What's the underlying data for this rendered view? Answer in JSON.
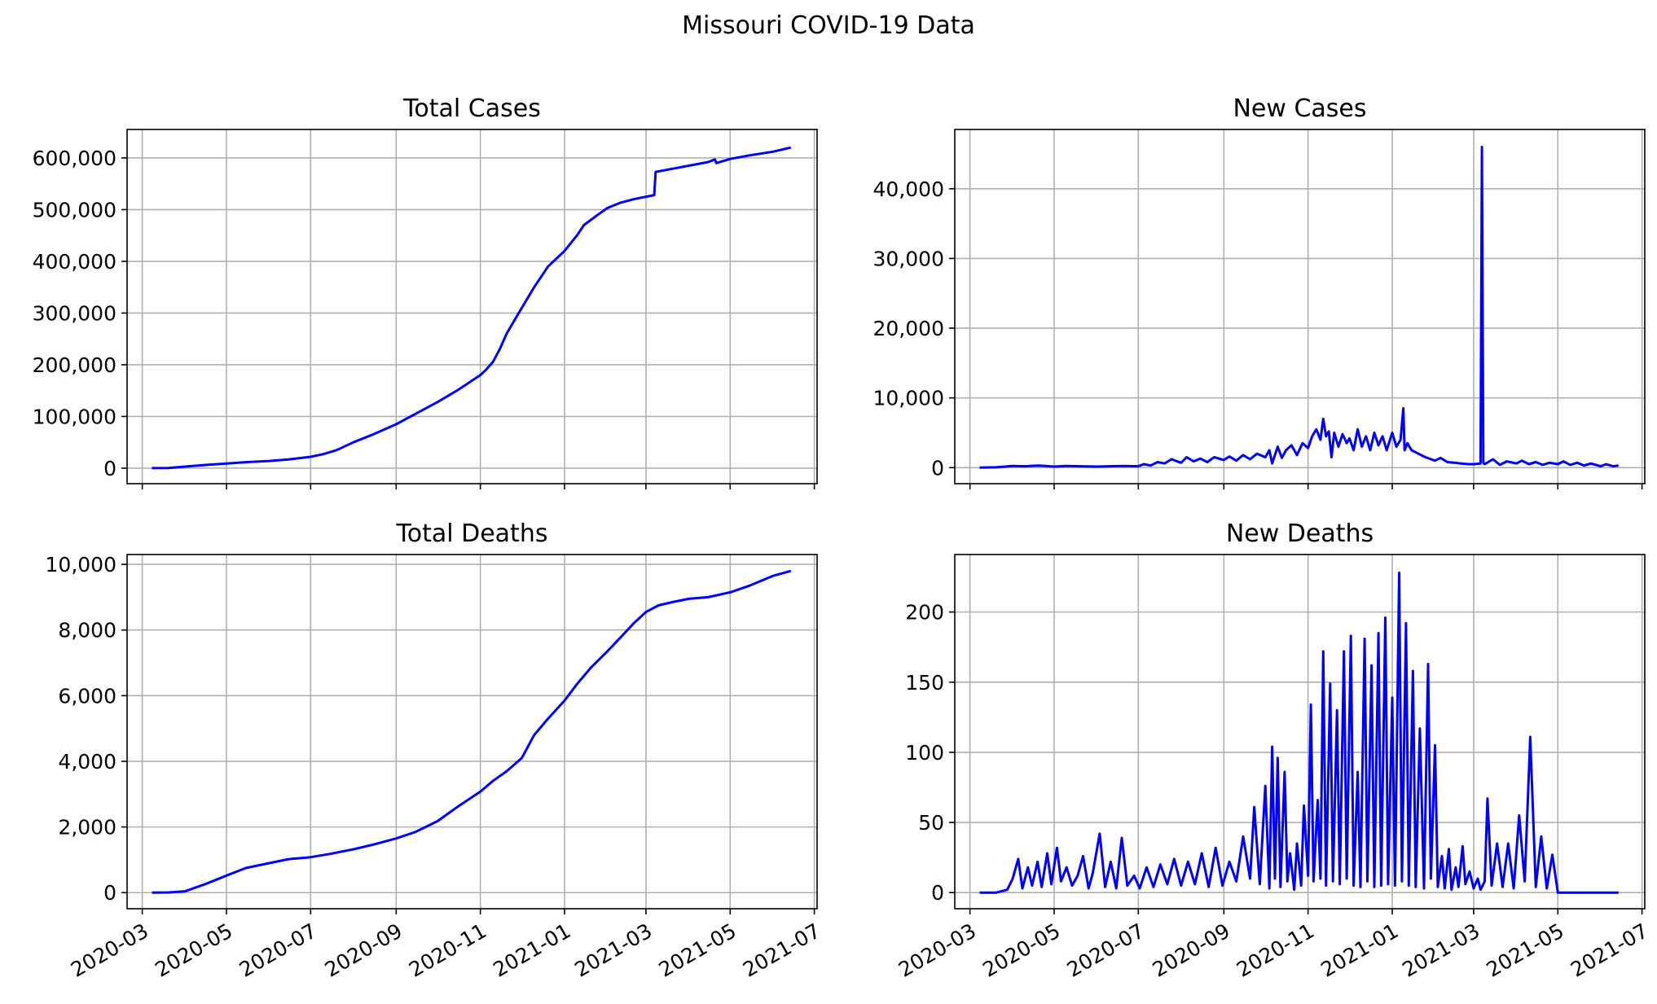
{
  "figure_title": "Missouri COVID-19 Data",
  "colors": {
    "line": "#0000ff",
    "grid": "#b0b0b0",
    "axes": "#000000"
  },
  "chart_data": [
    {
      "id": "total-cases",
      "type": "line",
      "title": "Total Cases",
      "xlabel": "",
      "ylabel": "",
      "grid": true,
      "x_type": "date",
      "xlim": [
        "2020-02-19",
        "2021-07-03"
      ],
      "ylim": [
        -30000,
        655000
      ],
      "yticks": [
        0,
        100000,
        200000,
        300000,
        400000,
        500000,
        600000
      ],
      "ytick_labels": [
        "0",
        "100,000",
        "200,000",
        "300,000",
        "400,000",
        "500,000",
        "600,000"
      ],
      "xticks": [
        "2020-03-01",
        "2020-05-01",
        "2020-07-01",
        "2020-09-01",
        "2020-11-01",
        "2021-01-01",
        "2021-03-01",
        "2021-05-01",
        "2021-07-01"
      ],
      "xtick_labels": [],
      "series": [
        {
          "x": [
            "2020-03-08",
            "2020-03-20",
            "2020-04-01",
            "2020-04-15",
            "2020-05-01",
            "2020-05-15",
            "2020-06-01",
            "2020-06-15",
            "2020-07-01",
            "2020-07-10",
            "2020-07-20",
            "2020-08-01",
            "2020-08-15",
            "2020-09-01",
            "2020-09-15",
            "2020-10-01",
            "2020-10-15",
            "2020-11-01",
            "2020-11-05",
            "2020-11-10",
            "2020-11-15",
            "2020-11-20",
            "2020-12-01",
            "2020-12-10",
            "2020-12-20",
            "2021-01-01",
            "2021-01-10",
            "2021-01-15",
            "2021-01-25",
            "2021-02-01",
            "2021-02-10",
            "2021-02-20",
            "2021-03-01",
            "2021-03-07",
            "2021-03-08",
            "2021-03-20",
            "2021-04-01",
            "2021-04-15",
            "2021-04-20",
            "2021-04-21",
            "2021-05-01",
            "2021-05-15",
            "2021-06-01",
            "2021-06-14"
          ],
          "y": [
            0,
            300,
            3000,
            6000,
            9000,
            11500,
            14000,
            17000,
            22000,
            27000,
            35000,
            50000,
            65000,
            85000,
            105000,
            128000,
            150000,
            180000,
            190000,
            205000,
            230000,
            260000,
            310000,
            350000,
            390000,
            420000,
            450000,
            470000,
            490000,
            503000,
            513000,
            520000,
            525000,
            528000,
            573000,
            579000,
            585000,
            592000,
            597000,
            590000,
            598000,
            605000,
            612000,
            620000
          ]
        }
      ]
    },
    {
      "id": "new-cases",
      "type": "line",
      "title": "New Cases",
      "xlabel": "",
      "ylabel": "",
      "grid": true,
      "x_type": "date",
      "xlim": [
        "2020-02-19",
        "2021-07-03"
      ],
      "ylim": [
        -2300,
        48500
      ],
      "yticks": [
        0,
        10000,
        20000,
        30000,
        40000
      ],
      "ytick_labels": [
        "0",
        "10,000",
        "20,000",
        "30,000",
        "40,000"
      ],
      "xticks": [
        "2020-03-01",
        "2020-05-01",
        "2020-07-01",
        "2020-09-01",
        "2020-11-01",
        "2021-01-01",
        "2021-03-01",
        "2021-05-01",
        "2021-07-01"
      ],
      "xtick_labels": [],
      "series": [
        {
          "x": [
            "2020-03-08",
            "2020-03-20",
            "2020-04-01",
            "2020-04-10",
            "2020-04-20",
            "2020-05-01",
            "2020-05-10",
            "2020-05-20",
            "2020-06-01",
            "2020-06-10",
            "2020-06-20",
            "2020-07-01",
            "2020-07-05",
            "2020-07-10",
            "2020-07-15",
            "2020-07-20",
            "2020-07-25",
            "2020-08-01",
            "2020-08-05",
            "2020-08-10",
            "2020-08-15",
            "2020-08-20",
            "2020-08-25",
            "2020-09-01",
            "2020-09-05",
            "2020-09-10",
            "2020-09-15",
            "2020-09-20",
            "2020-09-25",
            "2020-10-01",
            "2020-10-04",
            "2020-10-06",
            "2020-10-10",
            "2020-10-13",
            "2020-10-16",
            "2020-10-20",
            "2020-10-24",
            "2020-10-28",
            "2020-11-01",
            "2020-11-04",
            "2020-11-07",
            "2020-11-10",
            "2020-11-12",
            "2020-11-14",
            "2020-11-16",
            "2020-11-18",
            "2020-11-20",
            "2020-11-23",
            "2020-11-26",
            "2020-11-29",
            "2020-12-01",
            "2020-12-04",
            "2020-12-07",
            "2020-12-10",
            "2020-12-13",
            "2020-12-16",
            "2020-12-19",
            "2020-12-22",
            "2020-12-25",
            "2020-12-28",
            "2021-01-01",
            "2021-01-04",
            "2021-01-07",
            "2021-01-09",
            "2021-01-10",
            "2021-01-12",
            "2021-01-15",
            "2021-01-20",
            "2021-01-25",
            "2021-02-01",
            "2021-02-05",
            "2021-02-10",
            "2021-02-15",
            "2021-02-20",
            "2021-02-25",
            "2021-03-01",
            "2021-03-06",
            "2021-03-07",
            "2021-03-08",
            "2021-03-09",
            "2021-03-15",
            "2021-03-20",
            "2021-03-25",
            "2021-04-01",
            "2021-04-05",
            "2021-04-10",
            "2021-04-15",
            "2021-04-20",
            "2021-04-25",
            "2021-05-01",
            "2021-05-05",
            "2021-05-10",
            "2021-05-15",
            "2021-05-20",
            "2021-05-25",
            "2021-06-01",
            "2021-06-05",
            "2021-06-10",
            "2021-06-14"
          ],
          "y": [
            0,
            50,
            250,
            200,
            300,
            150,
            250,
            200,
            150,
            200,
            250,
            200,
            500,
            300,
            800,
            600,
            1200,
            700,
            1500,
            900,
            1300,
            800,
            1500,
            1100,
            1600,
            1000,
            1800,
            1200,
            2000,
            1500,
            2500,
            600,
            3000,
            1400,
            2500,
            3200,
            1800,
            3500,
            2800,
            4500,
            5500,
            4000,
            7000,
            4500,
            5200,
            1500,
            5000,
            3000,
            4800,
            3500,
            4200,
            2500,
            5500,
            3000,
            4500,
            2500,
            5000,
            3200,
            4500,
            2500,
            5000,
            3000,
            4000,
            8500,
            2500,
            3500,
            2500,
            2000,
            1500,
            1000,
            1400,
            800,
            700,
            600,
            500,
            500,
            600,
            46000,
            700,
            500,
            1200,
            400,
            900,
            600,
            1000,
            500,
            800,
            400,
            700,
            500,
            900,
            400,
            700,
            300,
            600,
            200,
            500,
            200,
            300
          ]
        }
      ]
    },
    {
      "id": "total-deaths",
      "type": "line",
      "title": "Total Deaths",
      "xlabel": "",
      "ylabel": "",
      "grid": true,
      "x_type": "date",
      "xlim": [
        "2020-02-19",
        "2021-07-03"
      ],
      "ylim": [
        -490,
        10300
      ],
      "yticks": [
        0,
        2000,
        4000,
        6000,
        8000,
        10000
      ],
      "ytick_labels": [
        "0",
        "2,000",
        "4,000",
        "6,000",
        "8,000",
        "10,000"
      ],
      "xticks": [
        "2020-03-01",
        "2020-05-01",
        "2020-07-01",
        "2020-09-01",
        "2020-11-01",
        "2021-01-01",
        "2021-03-01",
        "2021-05-01",
        "2021-07-01"
      ],
      "xtick_labels": [
        "2020-03",
        "2020-05",
        "2020-07",
        "2020-09",
        "2020-11",
        "2021-01",
        "2021-03",
        "2021-05",
        "2021-07"
      ],
      "series": [
        {
          "x": [
            "2020-03-08",
            "2020-03-20",
            "2020-04-01",
            "2020-04-15",
            "2020-05-01",
            "2020-05-15",
            "2020-06-01",
            "2020-06-15",
            "2020-07-01",
            "2020-07-15",
            "2020-08-01",
            "2020-08-15",
            "2020-09-01",
            "2020-09-15",
            "2020-10-01",
            "2020-10-15",
            "2020-11-01",
            "2020-11-10",
            "2020-11-20",
            "2020-12-01",
            "2020-12-10",
            "2020-12-20",
            "2021-01-01",
            "2021-01-10",
            "2021-01-20",
            "2021-02-01",
            "2021-02-10",
            "2021-02-20",
            "2021-03-01",
            "2021-03-10",
            "2021-03-20",
            "2021-04-01",
            "2021-04-15",
            "2021-05-01",
            "2021-05-15",
            "2021-06-01",
            "2021-06-14"
          ],
          "y": [
            0,
            5,
            40,
            250,
            520,
            750,
            900,
            1020,
            1080,
            1180,
            1320,
            1460,
            1650,
            1850,
            2180,
            2600,
            3080,
            3400,
            3700,
            4100,
            4800,
            5300,
            5850,
            6350,
            6850,
            7350,
            7750,
            8200,
            8550,
            8750,
            8850,
            8950,
            9000,
            9150,
            9350,
            9650,
            9800
          ]
        }
      ]
    },
    {
      "id": "new-deaths",
      "type": "line",
      "title": "New Deaths",
      "xlabel": "",
      "ylabel": "",
      "grid": true,
      "x_type": "date",
      "xlim": [
        "2020-02-19",
        "2021-07-03"
      ],
      "ylim": [
        -11.5,
        241
      ],
      "yticks": [
        0,
        50,
        100,
        150,
        200
      ],
      "ytick_labels": [
        "0",
        "50",
        "100",
        "150",
        "200"
      ],
      "xticks": [
        "2020-03-01",
        "2020-05-01",
        "2020-07-01",
        "2020-09-01",
        "2020-11-01",
        "2021-01-01",
        "2021-03-01",
        "2021-05-01",
        "2021-07-01"
      ],
      "xtick_labels": [
        "2020-03",
        "2020-05",
        "2020-07",
        "2020-09",
        "2020-11",
        "2021-01",
        "2021-03",
        "2021-05",
        "2021-07"
      ],
      "series": [
        {
          "x": [
            "2020-03-08",
            "2020-03-20",
            "2020-03-28",
            "2020-04-01",
            "2020-04-05",
            "2020-04-08",
            "2020-04-12",
            "2020-04-15",
            "2020-04-19",
            "2020-04-22",
            "2020-04-26",
            "2020-04-29",
            "2020-05-03",
            "2020-05-06",
            "2020-05-10",
            "2020-05-14",
            "2020-05-18",
            "2020-05-22",
            "2020-05-26",
            "2020-05-29",
            "2020-06-03",
            "2020-06-07",
            "2020-06-11",
            "2020-06-15",
            "2020-06-19",
            "2020-06-23",
            "2020-06-28",
            "2020-07-02",
            "2020-07-07",
            "2020-07-12",
            "2020-07-17",
            "2020-07-22",
            "2020-07-27",
            "2020-08-01",
            "2020-08-06",
            "2020-08-11",
            "2020-08-16",
            "2020-08-21",
            "2020-08-26",
            "2020-08-31",
            "2020-09-05",
            "2020-09-10",
            "2020-09-15",
            "2020-09-20",
            "2020-09-23",
            "2020-09-27",
            "2020-10-01",
            "2020-10-04",
            "2020-10-06",
            "2020-10-08",
            "2020-10-10",
            "2020-10-12",
            "2020-10-15",
            "2020-10-17",
            "2020-10-19",
            "2020-10-22",
            "2020-10-24",
            "2020-10-27",
            "2020-10-29",
            "2020-11-01",
            "2020-11-03",
            "2020-11-05",
            "2020-11-08",
            "2020-11-10",
            "2020-11-12",
            "2020-11-14",
            "2020-11-17",
            "2020-11-19",
            "2020-11-22",
            "2020-11-24",
            "2020-11-27",
            "2020-11-29",
            "2020-12-02",
            "2020-12-04",
            "2020-12-07",
            "2020-12-09",
            "2020-12-12",
            "2020-12-14",
            "2020-12-17",
            "2020-12-19",
            "2020-12-22",
            "2020-12-24",
            "2020-12-27",
            "2020-12-29",
            "2021-01-01",
            "2021-01-03",
            "2021-01-06",
            "2021-01-08",
            "2021-01-11",
            "2021-01-13",
            "2021-01-16",
            "2021-01-18",
            "2021-01-21",
            "2021-01-24",
            "2021-01-27",
            "2021-01-29",
            "2021-02-01",
            "2021-02-03",
            "2021-02-06",
            "2021-02-08",
            "2021-02-11",
            "2021-02-13",
            "2021-02-16",
            "2021-02-18",
            "2021-02-21",
            "2021-02-23",
            "2021-02-26",
            "2021-03-01",
            "2021-03-04",
            "2021-03-06",
            "2021-03-09",
            "2021-03-11",
            "2021-03-14",
            "2021-03-18",
            "2021-03-22",
            "2021-03-26",
            "2021-03-30",
            "2021-04-03",
            "2021-04-07",
            "2021-04-11",
            "2021-04-15",
            "2021-04-19",
            "2021-04-23",
            "2021-04-27",
            "2021-05-01",
            "2021-05-05",
            "2021-05-09",
            "2021-05-13",
            "2021-05-17",
            "2021-05-20",
            "2021-05-24",
            "2021-05-28",
            "2021-06-01",
            "2021-06-05",
            "2021-06-09",
            "2021-06-12",
            "2021-06-14"
          ],
          "y": [
            0,
            0,
            2,
            10,
            24,
            3,
            18,
            5,
            22,
            4,
            28,
            6,
            32,
            8,
            18,
            5,
            12,
            26,
            3,
            14,
            42,
            4,
            22,
            3,
            39,
            5,
            12,
            3,
            18,
            4,
            20,
            6,
            24,
            5,
            22,
            6,
            28,
            4,
            32,
            5,
            22,
            8,
            40,
            10,
            61,
            6,
            76,
            3,
            104,
            10,
            96,
            4,
            86,
            8,
            28,
            2,
            35,
            5,
            62,
            12,
            134,
            8,
            66,
            10,
            172,
            5,
            149,
            8,
            130,
            6,
            172,
            10,
            183,
            5,
            86,
            4,
            181,
            8,
            162,
            4,
            185,
            5,
            196,
            6,
            139,
            5,
            228,
            8,
            192,
            5,
            158,
            4,
            117,
            3,
            163,
            10,
            105,
            4,
            26,
            3,
            31,
            2,
            18,
            4,
            33,
            6,
            15,
            3,
            10,
            2,
            8,
            67,
            5,
            35,
            4,
            35,
            3,
            55,
            8,
            111,
            4,
            40,
            3,
            27,
            0,
            0,
            0,
            0,
            0,
            0,
            0,
            0,
            0,
            0,
            0,
            0,
            0
          ]
        }
      ]
    }
  ]
}
